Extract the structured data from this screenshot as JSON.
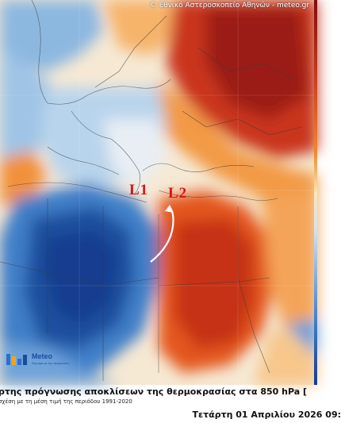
{
  "attribution": "© Εθνικό Αστεροσκοπείο Αθηνών - meteo.gr",
  "labels": {
    "l1": "L1",
    "l2": "L2"
  },
  "logo": {
    "word": "Meteo",
    "sub": "Σίγουρα με την πρόγνωση"
  },
  "title": "ρτης πρόγνωσης αποκλίσεων της θερμοκρασίας στα 850 hPa [",
  "subtitle": "σχέση με τη μέση τιμή της περιόδου 1991-2020",
  "date": "Τετάρτη 01 Απριλίου 2026 09:",
  "colors": {
    "warm_dark": "#8c1010",
    "warm": "#d9461e",
    "warm_light": "#f7a14a",
    "neutral": "#fbead0",
    "cool_light": "#c9def0",
    "cool": "#4d8fd2",
    "cool_dark": "#143d8f",
    "label_red": "#d8141c"
  }
}
